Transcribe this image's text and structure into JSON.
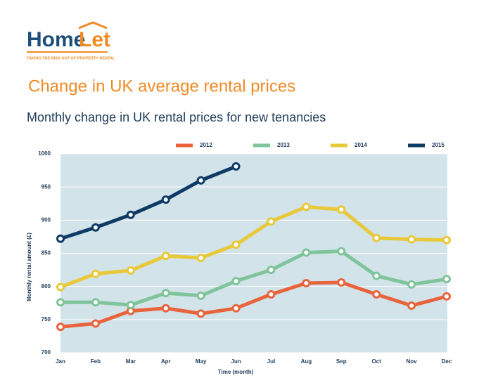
{
  "logo": {
    "home": "Home",
    "let": "Let",
    "tagline": "TAKING THE RISK OUT OF PROPERTY RENTAL"
  },
  "chart_data": {
    "type": "line",
    "title": "Change in UK average rental prices",
    "subtitle": "Monthly change in UK rental prices for new tenancies",
    "y_label": "Monthly rental amount (£)",
    "x_label": "Time (month)",
    "categories": [
      "Jan",
      "Feb",
      "Mar",
      "Apr",
      "May",
      "Jun",
      "Jul",
      "Aug",
      "Sep",
      "Oct",
      "Nov",
      "Dec"
    ],
    "series": [
      {
        "name": "2012",
        "color": "#e8643c",
        "values": [
          739,
          744,
          763,
          767,
          759,
          767,
          788,
          805,
          806,
          788,
          771,
          785
        ]
      },
      {
        "name": "2013",
        "color": "#7fc49a",
        "values": [
          776,
          776,
          772,
          790,
          786,
          808,
          825,
          851,
          853,
          816,
          803,
          811
        ]
      },
      {
        "name": "2014",
        "color": "#e8c93a",
        "values": [
          799,
          819,
          824,
          846,
          843,
          863,
          898,
          920,
          916,
          873,
          871,
          870
        ]
      },
      {
        "name": "2015",
        "color": "#0d3b66",
        "values": [
          872,
          889,
          908,
          931,
          960,
          981,
          null,
          null,
          null,
          null,
          null,
          null
        ]
      }
    ],
    "ylim": [
      700,
      1000
    ],
    "yticks": [
      700,
      750,
      800,
      850,
      900,
      950,
      1000
    ],
    "grid": true,
    "legend": "top"
  }
}
